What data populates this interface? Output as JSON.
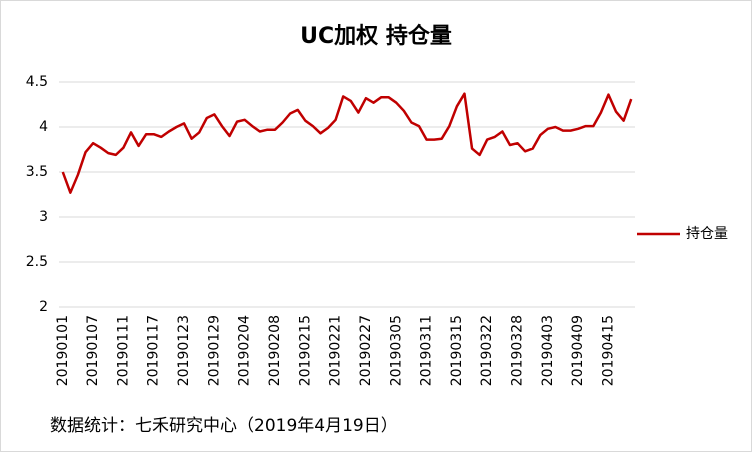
{
  "chart_data": {
    "type": "line",
    "title": "UC加权  持仓量",
    "source": "数据统计：七禾研究中心（2019年4月19日）",
    "categories": [
      "20190101",
      null,
      null,
      null,
      "20190107",
      null,
      null,
      null,
      "20190111",
      null,
      null,
      null,
      "20190117",
      null,
      null,
      null,
      "20190123",
      null,
      null,
      null,
      "20190129",
      null,
      null,
      null,
      "20190204",
      null,
      null,
      null,
      "20190208",
      null,
      null,
      null,
      "20190215",
      null,
      null,
      null,
      "20190221",
      null,
      null,
      null,
      "20190227",
      null,
      null,
      null,
      "20190305",
      null,
      null,
      null,
      "20190311",
      null,
      null,
      null,
      "20190315",
      null,
      null,
      null,
      "20190322",
      null,
      null,
      null,
      "20190328",
      null,
      null,
      null,
      "20190403",
      null,
      null,
      null,
      "20190409",
      null,
      null,
      null,
      "20190415",
      null,
      null,
      null
    ],
    "series": [
      {
        "name": "持仓量",
        "color": "#c00000",
        "values": [
          3.5,
          3.27,
          3.47,
          3.72,
          3.82,
          3.77,
          3.71,
          3.69,
          3.77,
          3.94,
          3.79,
          3.92,
          3.92,
          3.89,
          3.95,
          4.0,
          4.04,
          3.87,
          3.94,
          4.1,
          4.14,
          4.01,
          3.9,
          4.06,
          4.08,
          4.01,
          3.95,
          3.97,
          3.97,
          4.05,
          4.15,
          4.19,
          4.07,
          4.01,
          3.93,
          3.99,
          4.08,
          4.34,
          4.29,
          4.16,
          4.32,
          4.27,
          4.33,
          4.33,
          4.27,
          4.18,
          4.05,
          4.01,
          3.86,
          3.86,
          3.87,
          4.01,
          4.23,
          4.37,
          3.76,
          3.69,
          3.86,
          3.89,
          3.95,
          3.8,
          3.82,
          3.73,
          3.76,
          3.91,
          3.98,
          4.0,
          3.96,
          3.96,
          3.98,
          4.01,
          4.01,
          4.16,
          4.36,
          4.17,
          4.07,
          4.31
        ]
      }
    ],
    "ylim": [
      2,
      4.5
    ],
    "yticks": [
      2,
      2.5,
      3,
      3.5,
      4,
      4.5
    ],
    "grid": true,
    "legend": "right"
  }
}
